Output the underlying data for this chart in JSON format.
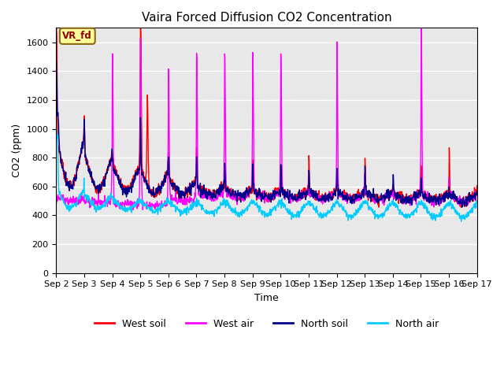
{
  "title": "Vaira Forced Diffusion CO2 Concentration",
  "xlabel": "Time",
  "ylabel": "CO2 (ppm)",
  "ylim": [
    0,
    1700
  ],
  "yticks": [
    0,
    200,
    400,
    600,
    800,
    1000,
    1200,
    1400,
    1600
  ],
  "legend_labels": [
    "West soil",
    "West air",
    "North soil",
    "North air"
  ],
  "legend_colors": [
    "#ff0000",
    "#ff00ff",
    "#00008b",
    "#00ccff"
  ],
  "annotation_text": "VR_fd",
  "annotation_bg": "#ffff99",
  "annotation_border": "#8b6914",
  "bg_color": "#e8e8e8",
  "n_days": 15,
  "ppd": 96,
  "seed": 7
}
